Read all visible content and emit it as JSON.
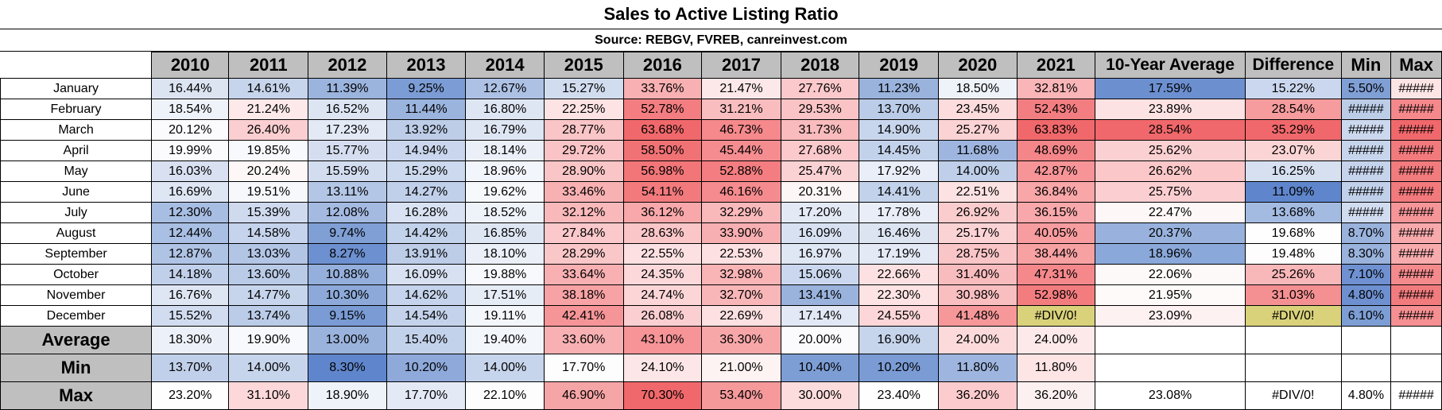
{
  "title": "Sales to Active Listing Ratio",
  "source": "Source: REBGV, FVREB, canreinvest.com",
  "headers": [
    "2010",
    "2011",
    "2012",
    "2013",
    "2014",
    "2015",
    "2016",
    "2017",
    "2018",
    "2019",
    "2020",
    "2021",
    "10-Year Average",
    "Difference",
    "Min",
    "Max"
  ],
  "months": [
    {
      "label": "January",
      "cells": [
        {
          "v": "16.44%",
          "bg": "#dce4f2"
        },
        {
          "v": "14.61%",
          "bg": "#c6d4ec"
        },
        {
          "v": "11.39%",
          "bg": "#9bb4de"
        },
        {
          "v": "9.25%",
          "bg": "#7b9cd4"
        },
        {
          "v": "12.67%",
          "bg": "#adc1e4"
        },
        {
          "v": "15.27%",
          "bg": "#d1dcef"
        },
        {
          "v": "33.76%",
          "bg": "#f8b0b2"
        },
        {
          "v": "21.47%",
          "bg": "#fde8e9"
        },
        {
          "v": "27.76%",
          "bg": "#fbc9cb"
        },
        {
          "v": "11.23%",
          "bg": "#9ab3dd"
        },
        {
          "v": "18.50%",
          "bg": "#eef2f9"
        },
        {
          "v": "32.81%",
          "bg": "#f9b5b7"
        },
        {
          "v": "17.59%",
          "bg": "#6c8fd0"
        },
        {
          "v": "15.22%",
          "bg": "#cbd7ee"
        },
        {
          "v": "5.50%",
          "bg": "#7f9fd5"
        },
        {
          "v": "#####",
          "bg": "#fde4e5"
        }
      ]
    },
    {
      "label": "February",
      "cells": [
        {
          "v": "18.54%",
          "bg": "#eef2f9"
        },
        {
          "v": "21.24%",
          "bg": "#fde9ea"
        },
        {
          "v": "16.52%",
          "bg": "#dde5f3"
        },
        {
          "v": "11.44%",
          "bg": "#9bb4de"
        },
        {
          "v": "16.80%",
          "bg": "#dfe6f3"
        },
        {
          "v": "22.25%",
          "bg": "#fde3e4"
        },
        {
          "v": "52.78%",
          "bg": "#f37d80"
        },
        {
          "v": "31.21%",
          "bg": "#f9bdbf"
        },
        {
          "v": "29.53%",
          "bg": "#fac4c6"
        },
        {
          "v": "13.70%",
          "bg": "#bbcce8"
        },
        {
          "v": "23.45%",
          "bg": "#fcdcdd"
        },
        {
          "v": "52.43%",
          "bg": "#f37e81"
        },
        {
          "v": "23.89%",
          "bg": "#fde2e3"
        },
        {
          "v": "28.54%",
          "bg": "#f69c9e"
        },
        {
          "v": "#####",
          "bg": "#bccde8"
        },
        {
          "v": "#####",
          "bg": "#f5888b"
        }
      ]
    },
    {
      "label": "March",
      "cells": [
        {
          "v": "20.12%",
          "bg": "#fbfbfe"
        },
        {
          "v": "26.40%",
          "bg": "#fbcfd1"
        },
        {
          "v": "17.23%",
          "bg": "#e3e9f5"
        },
        {
          "v": "13.92%",
          "bg": "#bdcde8"
        },
        {
          "v": "16.79%",
          "bg": "#dfe6f3"
        },
        {
          "v": "28.77%",
          "bg": "#fac5c7"
        },
        {
          "v": "63.68%",
          "bg": "#f0686b"
        },
        {
          "v": "46.73%",
          "bg": "#f5898c"
        },
        {
          "v": "31.73%",
          "bg": "#f9bbbd"
        },
        {
          "v": "14.90%",
          "bg": "#c8d6ed"
        },
        {
          "v": "25.27%",
          "bg": "#fcd3d5"
        },
        {
          "v": "63.83%",
          "bg": "#f0686b"
        },
        {
          "v": "28.54%",
          "bg": "#f0686b"
        },
        {
          "v": "35.29%",
          "bg": "#f0686b"
        },
        {
          "v": "#####",
          "bg": "#cbd8ee"
        },
        {
          "v": "#####",
          "bg": "#f0686b"
        }
      ]
    },
    {
      "label": "April",
      "cells": [
        {
          "v": "19.99%",
          "bg": "#fbfbfe"
        },
        {
          "v": "19.85%",
          "bg": "#f8f9fd"
        },
        {
          "v": "15.77%",
          "bg": "#d5def0"
        },
        {
          "v": "14.94%",
          "bg": "#c9d6ed"
        },
        {
          "v": "18.14%",
          "bg": "#eaeff8"
        },
        {
          "v": "29.72%",
          "bg": "#fac3c5"
        },
        {
          "v": "58.50%",
          "bg": "#f17275"
        },
        {
          "v": "45.44%",
          "bg": "#f58d90"
        },
        {
          "v": "27.68%",
          "bg": "#fbc9cb"
        },
        {
          "v": "14.45%",
          "bg": "#c3d2eb"
        },
        {
          "v": "11.68%",
          "bg": "#9eb6df"
        },
        {
          "v": "48.69%",
          "bg": "#f48588"
        },
        {
          "v": "25.62%",
          "bg": "#fbd0d2"
        },
        {
          "v": "23.07%",
          "bg": "#fbd5d6"
        },
        {
          "v": "#####",
          "bg": "#c7d5ec"
        },
        {
          "v": "#####",
          "bg": "#f27a7d"
        }
      ]
    },
    {
      "label": "May",
      "cells": [
        {
          "v": "16.03%",
          "bg": "#d8e0f1"
        },
        {
          "v": "20.24%",
          "bg": "#fdf7f7"
        },
        {
          "v": "15.59%",
          "bg": "#d3ddf0"
        },
        {
          "v": "15.29%",
          "bg": "#ccd9ee"
        },
        {
          "v": "18.96%",
          "bg": "#f2f5fb"
        },
        {
          "v": "28.90%",
          "bg": "#fac5c7"
        },
        {
          "v": "56.98%",
          "bg": "#f27578"
        },
        {
          "v": "52.88%",
          "bg": "#f37d80"
        },
        {
          "v": "25.47%",
          "bg": "#fbd2d4"
        },
        {
          "v": "17.92%",
          "bg": "#e9eef8"
        },
        {
          "v": "14.00%",
          "bg": "#bfcfe9"
        },
        {
          "v": "42.87%",
          "bg": "#f69497"
        },
        {
          "v": "26.62%",
          "bg": "#fbc7c9"
        },
        {
          "v": "16.25%",
          "bg": "#d6e0f1"
        },
        {
          "v": "#####",
          "bg": "#c5d3ec"
        },
        {
          "v": "#####",
          "bg": "#f27b7e"
        }
      ]
    },
    {
      "label": "June",
      "cells": [
        {
          "v": "16.69%",
          "bg": "#dee5f3"
        },
        {
          "v": "19.51%",
          "bg": "#f6f8fc"
        },
        {
          "v": "13.11%",
          "bg": "#b3c6e6"
        },
        {
          "v": "14.27%",
          "bg": "#c1d0ea"
        },
        {
          "v": "19.62%",
          "bg": "#f6f8fc"
        },
        {
          "v": "33.46%",
          "bg": "#f8b1b3"
        },
        {
          "v": "54.11%",
          "bg": "#f27a7d"
        },
        {
          "v": "46.16%",
          "bg": "#f58b8e"
        },
        {
          "v": "20.31%",
          "bg": "#fdf6f6"
        },
        {
          "v": "14.41%",
          "bg": "#c3d2eb"
        },
        {
          "v": "22.51%",
          "bg": "#fde2e3"
        },
        {
          "v": "36.84%",
          "bg": "#f8a6a8"
        },
        {
          "v": "25.75%",
          "bg": "#fbcfd1"
        },
        {
          "v": "11.09%",
          "bg": "#5f86cc"
        },
        {
          "v": "#####",
          "bg": "#c1d0ea"
        },
        {
          "v": "#####",
          "bg": "#f2797c"
        }
      ]
    },
    {
      "label": "July",
      "cells": [
        {
          "v": "12.30%",
          "bg": "#a7bde2"
        },
        {
          "v": "15.39%",
          "bg": "#cfdaef"
        },
        {
          "v": "12.08%",
          "bg": "#a4bae1"
        },
        {
          "v": "16.28%",
          "bg": "#d9e2f2"
        },
        {
          "v": "18.52%",
          "bg": "#eef2f9"
        },
        {
          "v": "32.12%",
          "bg": "#f9b9bb"
        },
        {
          "v": "36.12%",
          "bg": "#f8a8aa"
        },
        {
          "v": "32.29%",
          "bg": "#f9b8ba"
        },
        {
          "v": "17.20%",
          "bg": "#e3e9f5"
        },
        {
          "v": "17.78%",
          "bg": "#e8edf7"
        },
        {
          "v": "26.92%",
          "bg": "#fbcccd"
        },
        {
          "v": "36.15%",
          "bg": "#f8a8aa"
        },
        {
          "v": "22.47%",
          "bg": "#fdf7f7"
        },
        {
          "v": "13.68%",
          "bg": "#a4bbe1"
        },
        {
          "v": "#####",
          "bg": "#d2dcf0"
        },
        {
          "v": "#####",
          "bg": "#f69598"
        }
      ]
    },
    {
      "label": "August",
      "cells": [
        {
          "v": "12.44%",
          "bg": "#a9bfe3"
        },
        {
          "v": "14.58%",
          "bg": "#c5d3ec"
        },
        {
          "v": "9.74%",
          "bg": "#7f9fd5"
        },
        {
          "v": "14.42%",
          "bg": "#c3d2eb"
        },
        {
          "v": "16.85%",
          "bg": "#dfe6f3"
        },
        {
          "v": "27.84%",
          "bg": "#fbc9cb"
        },
        {
          "v": "28.63%",
          "bg": "#fac6c8"
        },
        {
          "v": "33.90%",
          "bg": "#f8afb1"
        },
        {
          "v": "16.09%",
          "bg": "#d8e1f2"
        },
        {
          "v": "16.46%",
          "bg": "#dce4f2"
        },
        {
          "v": "25.17%",
          "bg": "#fcd3d5"
        },
        {
          "v": "40.05%",
          "bg": "#f79c9f"
        },
        {
          "v": "20.37%",
          "bg": "#99b2dd"
        },
        {
          "v": "19.68%",
          "bg": "#fefefe"
        },
        {
          "v": "8.70%",
          "bg": "#9ab3dd"
        },
        {
          "v": "#####",
          "bg": "#f8a9ab"
        }
      ]
    },
    {
      "label": "September",
      "cells": [
        {
          "v": "12.87%",
          "bg": "#afc3e5"
        },
        {
          "v": "13.03%",
          "bg": "#b2c5e5"
        },
        {
          "v": "8.27%",
          "bg": "#6d90d0"
        },
        {
          "v": "13.91%",
          "bg": "#bdcde8"
        },
        {
          "v": "18.10%",
          "bg": "#eaeff8"
        },
        {
          "v": "28.29%",
          "bg": "#fac7c9"
        },
        {
          "v": "22.55%",
          "bg": "#fde1e2"
        },
        {
          "v": "22.53%",
          "bg": "#fde1e2"
        },
        {
          "v": "16.97%",
          "bg": "#e0e7f4"
        },
        {
          "v": "17.19%",
          "bg": "#e3e9f5"
        },
        {
          "v": "28.75%",
          "bg": "#fac5c7"
        },
        {
          "v": "38.44%",
          "bg": "#f7a1a3"
        },
        {
          "v": "18.96%",
          "bg": "#8aa8d9"
        },
        {
          "v": "19.48%",
          "bg": "#fdfdfe"
        },
        {
          "v": "8.30%",
          "bg": "#9ab3dd"
        },
        {
          "v": "#####",
          "bg": "#f8abad"
        }
      ]
    },
    {
      "label": "October",
      "cells": [
        {
          "v": "14.18%",
          "bg": "#c1d0ea"
        },
        {
          "v": "13.60%",
          "bg": "#bacbe8"
        },
        {
          "v": "10.88%",
          "bg": "#94afdc"
        },
        {
          "v": "16.09%",
          "bg": "#d8e1f2"
        },
        {
          "v": "19.88%",
          "bg": "#f8f9fd"
        },
        {
          "v": "33.64%",
          "bg": "#f8b0b2"
        },
        {
          "v": "24.35%",
          "bg": "#fcd8da"
        },
        {
          "v": "32.98%",
          "bg": "#f9b4b6"
        },
        {
          "v": "15.06%",
          "bg": "#cad7ee"
        },
        {
          "v": "22.66%",
          "bg": "#fde1e2"
        },
        {
          "v": "31.40%",
          "bg": "#f9bcbe"
        },
        {
          "v": "47.31%",
          "bg": "#f5888b"
        },
        {
          "v": "22.06%",
          "bg": "#fef9f9"
        },
        {
          "v": "25.26%",
          "bg": "#f8b7b9"
        },
        {
          "v": "7.10%",
          "bg": "#6f91d1"
        },
        {
          "v": "#####",
          "bg": "#f58a8d"
        }
      ]
    },
    {
      "label": "November",
      "cells": [
        {
          "v": "16.76%",
          "bg": "#dfe6f3"
        },
        {
          "v": "14.77%",
          "bg": "#c7d5ec"
        },
        {
          "v": "10.30%",
          "bg": "#8ca9d9"
        },
        {
          "v": "14.62%",
          "bg": "#c5d3ec"
        },
        {
          "v": "17.51%",
          "bg": "#e6ecf6"
        },
        {
          "v": "38.18%",
          "bg": "#f7a2a4"
        },
        {
          "v": "24.74%",
          "bg": "#fcd5d7"
        },
        {
          "v": "32.70%",
          "bg": "#f9b6b8"
        },
        {
          "v": "13.41%",
          "bg": "#9ab3dd"
        },
        {
          "v": "22.30%",
          "bg": "#fde3e4"
        },
        {
          "v": "30.98%",
          "bg": "#f9bec0"
        },
        {
          "v": "52.98%",
          "bg": "#f37c7f"
        },
        {
          "v": "21.95%",
          "bg": "#fefafa"
        },
        {
          "v": "31.03%",
          "bg": "#f59092"
        },
        {
          "v": "4.80%",
          "bg": "#6e90d0"
        },
        {
          "v": "#####",
          "bg": "#f27b7e"
        }
      ]
    },
    {
      "label": "December",
      "cells": [
        {
          "v": "15.52%",
          "bg": "#d2dcf0"
        },
        {
          "v": "13.74%",
          "bg": "#bbcce8"
        },
        {
          "v": "9.15%",
          "bg": "#7a9bd4"
        },
        {
          "v": "14.54%",
          "bg": "#c4d3eb"
        },
        {
          "v": "19.11%",
          "bg": "#f3f6fb"
        },
        {
          "v": "42.41%",
          "bg": "#f69598"
        },
        {
          "v": "26.08%",
          "bg": "#fbcfd1"
        },
        {
          "v": "22.69%",
          "bg": "#fde0e1"
        },
        {
          "v": "17.14%",
          "bg": "#e2e8f5"
        },
        {
          "v": "24.55%",
          "bg": "#fcd6d8"
        },
        {
          "v": "41.48%",
          "bg": "#f69799"
        },
        {
          "v": "#DIV/0!",
          "bg": "#d9d27a",
          "err": true
        },
        {
          "v": "23.09%",
          "bg": "#fef1f1"
        },
        {
          "v": "#DIV/0!",
          "bg": "#d9d27a",
          "err": true
        },
        {
          "v": "6.10%",
          "bg": "#7d9ed5"
        },
        {
          "v": "#####",
          "bg": "#f68f92"
        }
      ]
    }
  ],
  "stats": [
    {
      "label": "Average",
      "cells": [
        {
          "v": "18.30%",
          "bg": "#ecf0f8"
        },
        {
          "v": "19.90%",
          "bg": "#f8f9fd"
        },
        {
          "v": "13.00%",
          "bg": "#9ab3dd"
        },
        {
          "v": "15.40%",
          "bg": "#c3d2eb"
        },
        {
          "v": "19.40%",
          "bg": "#f3f6fb"
        },
        {
          "v": "33.60%",
          "bg": "#f8b0b2"
        },
        {
          "v": "43.10%",
          "bg": "#f69497"
        },
        {
          "v": "36.30%",
          "bg": "#f8a7a9"
        },
        {
          "v": "20.00%",
          "bg": "#fbfbfe"
        },
        {
          "v": "16.90%",
          "bg": "#c6d4ec"
        },
        {
          "v": "24.00%",
          "bg": "#fcdadb"
        },
        {
          "v": "24.00%",
          "bg": "#fde9ea"
        },
        {
          "v": "",
          "bg": "#ffffff"
        },
        {
          "v": "",
          "bg": "#ffffff"
        },
        {
          "v": "",
          "bg": "#ffffff"
        },
        {
          "v": "",
          "bg": "#ffffff"
        }
      ]
    },
    {
      "label": "Min",
      "cells": [
        {
          "v": "13.70%",
          "bg": "#c1d0ea"
        },
        {
          "v": "14.00%",
          "bg": "#c7d5ec"
        },
        {
          "v": "8.30%",
          "bg": "#5f86cc"
        },
        {
          "v": "10.20%",
          "bg": "#8ea9da"
        },
        {
          "v": "14.00%",
          "bg": "#c7d5ec"
        },
        {
          "v": "17.70%",
          "bg": "#fdfdfe"
        },
        {
          "v": "24.10%",
          "bg": "#fce6e7"
        },
        {
          "v": "21.00%",
          "bg": "#fef3f3"
        },
        {
          "v": "10.40%",
          "bg": "#7d9ed5"
        },
        {
          "v": "10.20%",
          "bg": "#7a9bd4"
        },
        {
          "v": "11.80%",
          "bg": "#9eb6df"
        },
        {
          "v": "11.80%",
          "bg": "#fde4e5"
        },
        {
          "v": "",
          "bg": "#ffffff"
        },
        {
          "v": "",
          "bg": "#ffffff"
        },
        {
          "v": "",
          "bg": "#ffffff"
        },
        {
          "v": "",
          "bg": "#ffffff"
        }
      ]
    },
    {
      "label": "Max",
      "cells": [
        {
          "v": "23.20%",
          "bg": "#fefefe"
        },
        {
          "v": "31.10%",
          "bg": "#fcd8da"
        },
        {
          "v": "18.90%",
          "bg": "#eef2f9"
        },
        {
          "v": "17.70%",
          "bg": "#e3e9f5"
        },
        {
          "v": "22.10%",
          "bg": "#fdfdfe"
        },
        {
          "v": "46.90%",
          "bg": "#f6a5a7"
        },
        {
          "v": "70.30%",
          "bg": "#f0686b"
        },
        {
          "v": "53.40%",
          "bg": "#f5999b"
        },
        {
          "v": "30.00%",
          "bg": "#fcdcdd"
        },
        {
          "v": "23.40%",
          "bg": "#fefefe"
        },
        {
          "v": "36.20%",
          "bg": "#fbcbcd"
        },
        {
          "v": "36.20%",
          "bg": "#fdf0f0"
        },
        {
          "v": "23.08%",
          "bg": "#ffffff"
        },
        {
          "v": "#DIV/0!",
          "bg": "#ffffff"
        },
        {
          "v": "4.80%",
          "bg": "#ffffff"
        },
        {
          "v": "#####",
          "bg": "#ffffff"
        }
      ]
    }
  ]
}
